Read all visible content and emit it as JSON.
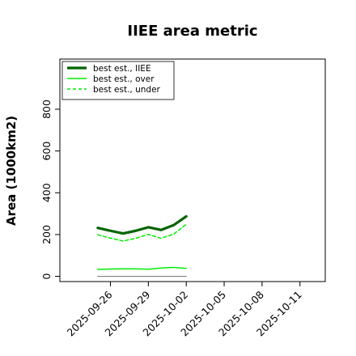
{
  "chart_data": {
    "type": "line",
    "title": "IIEE area metric",
    "xlabel": "",
    "ylabel": "Area (1000km2)",
    "x_ticks": [
      "2025-09-26",
      "2025-09-29",
      "2025-10-02",
      "2025-10-05",
      "2025-10-08",
      "2025-10-11"
    ],
    "x_range": [
      "2025-09-22",
      "2025-10-13"
    ],
    "x": [
      "2025-09-25",
      "2025-09-26",
      "2025-09-27",
      "2025-09-28",
      "2025-09-29",
      "2025-09-30",
      "2025-10-01",
      "2025-10-02"
    ],
    "ylim": [
      -25,
      1040
    ],
    "y_ticks": [
      0,
      200,
      400,
      600,
      800
    ],
    "grid": false,
    "legend_position": "top-left",
    "series": [
      {
        "name": "best est., IIEE",
        "color": "#006400",
        "style": "solid-thick",
        "values": [
          232,
          218,
          205,
          218,
          235,
          222,
          245,
          287
        ]
      },
      {
        "name": "best est., over",
        "color": "#00ee00",
        "style": "solid",
        "values": [
          33,
          35,
          36,
          36,
          34,
          40,
          43,
          38
        ]
      },
      {
        "name": "best est., under",
        "color": "#00ee00",
        "style": "dashed",
        "values": [
          199,
          183,
          169,
          182,
          201,
          182,
          202,
          249
        ]
      },
      {
        "name": "",
        "color": "#808080",
        "style": "solid-thin",
        "values": [
          0,
          0,
          0,
          0,
          0,
          0,
          0,
          0
        ]
      }
    ]
  }
}
